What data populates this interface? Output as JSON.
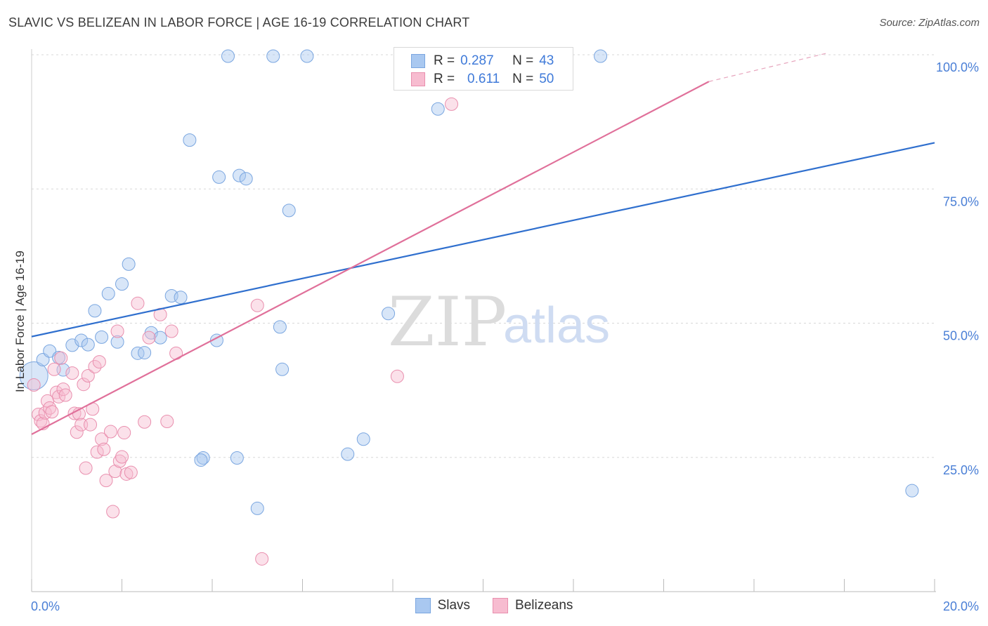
{
  "title": "SLAVIC VS BELIZEAN IN LABOR FORCE | AGE 16-19 CORRELATION CHART",
  "source": "Source: ZipAtlas.com",
  "watermark": {
    "zip": "ZIP",
    "atlas": "atlas"
  },
  "legend": {
    "rows": [
      {
        "r_label": "R =",
        "r_value": "0.287",
        "n_label": "N =",
        "n_value": "43",
        "color": "#a9c8f0",
        "border": "#7aa6e0"
      },
      {
        "r_label": "R =",
        "r_value": "0.611",
        "n_label": "N =",
        "n_value": "50",
        "color": "#f7bcd0",
        "border": "#e98fae"
      }
    ]
  },
  "bottom_legend": [
    {
      "label": "Slavs",
      "color": "#a9c8f0",
      "border": "#7aa6e0"
    },
    {
      "label": "Belizeans",
      "color": "#f7bcd0",
      "border": "#e98fae"
    }
  ],
  "colors": {
    "slavs_line": "#2f6fce",
    "belizeans_line": "#e0709a",
    "grid": "#d8d8d8",
    "tick_text": "#4a7fd6"
  },
  "chart_data": {
    "type": "scatter",
    "title": "SLAVIC VS BELIZEAN IN LABOR FORCE | AGE 16-19 CORRELATION CHART",
    "xlabel": "",
    "ylabel": "In Labor Force | Age 16-19",
    "xlim": [
      0,
      20
    ],
    "ylim": [
      0,
      102
    ],
    "x_ticks": [
      "0.0%",
      "20.0%"
    ],
    "y_ticks": [
      {
        "value": 25,
        "label": "25.0%"
      },
      {
        "value": 50,
        "label": "50.0%"
      },
      {
        "value": 75,
        "label": "75.0%"
      },
      {
        "value": 100,
        "label": "100.0%"
      }
    ],
    "grid": true,
    "legend_position": "top-center",
    "series": [
      {
        "name": "Slavs",
        "r": 0.287,
        "n": 43,
        "trend": {
          "x": [
            0,
            20
          ],
          "y": [
            47.5,
            83.6
          ]
        },
        "points": [
          [
            0.05,
            40.2,
            20
          ],
          [
            0.25,
            43.2,
            9
          ],
          [
            0.4,
            44.8,
            9
          ],
          [
            0.6,
            43.6,
            9
          ],
          [
            0.7,
            41.3,
            9
          ],
          [
            0.9,
            45.9,
            9
          ],
          [
            1.1,
            46.8,
            9
          ],
          [
            1.25,
            46.0,
            9
          ],
          [
            1.4,
            52.3,
            9
          ],
          [
            1.55,
            47.4,
            9
          ],
          [
            1.7,
            55.5,
            9
          ],
          [
            1.9,
            46.5,
            9
          ],
          [
            2.0,
            57.3,
            9
          ],
          [
            2.15,
            61.0,
            9
          ],
          [
            2.35,
            44.4,
            9
          ],
          [
            2.5,
            44.5,
            9
          ],
          [
            2.65,
            48.2,
            9
          ],
          [
            2.85,
            47.3,
            9
          ],
          [
            3.1,
            55.1,
            9
          ],
          [
            3.3,
            54.8,
            9
          ],
          [
            3.5,
            84.1,
            9
          ],
          [
            3.8,
            24.9,
            9
          ],
          [
            3.75,
            24.5,
            9
          ],
          [
            4.1,
            46.8,
            9
          ],
          [
            4.15,
            77.2,
            9
          ],
          [
            4.35,
            103.5,
            9
          ],
          [
            4.55,
            24.9,
            9
          ],
          [
            4.6,
            77.5,
            9
          ],
          [
            4.75,
            76.9,
            9
          ],
          [
            5.0,
            15.5,
            9
          ],
          [
            5.35,
            103.5,
            9
          ],
          [
            5.5,
            49.3,
            9
          ],
          [
            5.55,
            41.4,
            9
          ],
          [
            5.7,
            71.0,
            9
          ],
          [
            6.1,
            103.6,
            9
          ],
          [
            7.0,
            25.6,
            9
          ],
          [
            7.35,
            28.4,
            9
          ],
          [
            7.9,
            51.8,
            9
          ],
          [
            8.2,
            103.5,
            9
          ],
          [
            9.0,
            89.9,
            9
          ],
          [
            10.0,
            103.5,
            9
          ],
          [
            12.6,
            103.5,
            9
          ],
          [
            19.5,
            18.8,
            9
          ]
        ]
      },
      {
        "name": "Belizeans",
        "r": 0.611,
        "n": 50,
        "trend": {
          "x": [
            0,
            15
          ],
          "y": [
            29.3,
            95.0
          ],
          "dashed_to": {
            "x": 17.6,
            "y": 106.1
          }
        },
        "points": [
          [
            0.05,
            38.5,
            9
          ],
          [
            0.15,
            33.0,
            9
          ],
          [
            0.2,
            31.8,
            9
          ],
          [
            0.25,
            31.3,
            9
          ],
          [
            0.3,
            33.3,
            9
          ],
          [
            0.35,
            35.5,
            9
          ],
          [
            0.4,
            34.2,
            9
          ],
          [
            0.45,
            33.5,
            9
          ],
          [
            0.5,
            41.4,
            9
          ],
          [
            0.55,
            37.1,
            9
          ],
          [
            0.6,
            36.3,
            9
          ],
          [
            0.65,
            43.5,
            9
          ],
          [
            0.7,
            37.7,
            9
          ],
          [
            0.75,
            36.6,
            9
          ],
          [
            0.9,
            40.7,
            9
          ],
          [
            0.95,
            33.2,
            9
          ],
          [
            1.0,
            29.7,
            9
          ],
          [
            1.05,
            33.1,
            9
          ],
          [
            1.1,
            31.1,
            9
          ],
          [
            1.15,
            38.6,
            9
          ],
          [
            1.2,
            23.0,
            9
          ],
          [
            1.25,
            40.2,
            9
          ],
          [
            1.3,
            31.1,
            9
          ],
          [
            1.35,
            34.0,
            9
          ],
          [
            1.4,
            41.9,
            9
          ],
          [
            1.45,
            26.0,
            9
          ],
          [
            1.5,
            42.8,
            9
          ],
          [
            1.55,
            28.4,
            9
          ],
          [
            1.6,
            26.5,
            9
          ],
          [
            1.65,
            20.7,
            9
          ],
          [
            1.75,
            29.8,
            9
          ],
          [
            1.8,
            14.9,
            9
          ],
          [
            1.85,
            22.4,
            9
          ],
          [
            1.9,
            48.5,
            9
          ],
          [
            1.95,
            24.3,
            9
          ],
          [
            2.0,
            25.1,
            9
          ],
          [
            2.05,
            29.6,
            9
          ],
          [
            2.1,
            21.9,
            9
          ],
          [
            2.2,
            22.2,
            9
          ],
          [
            2.35,
            53.7,
            9
          ],
          [
            2.5,
            31.6,
            9
          ],
          [
            2.6,
            47.3,
            9
          ],
          [
            2.85,
            51.6,
            9
          ],
          [
            3.0,
            31.7,
            9
          ],
          [
            3.1,
            48.5,
            9
          ],
          [
            3.2,
            44.4,
            9
          ],
          [
            5.0,
            53.3,
            9
          ],
          [
            5.1,
            6.1,
            9
          ],
          [
            8.1,
            40.1,
            9
          ],
          [
            9.3,
            90.8,
            9
          ]
        ]
      }
    ]
  }
}
